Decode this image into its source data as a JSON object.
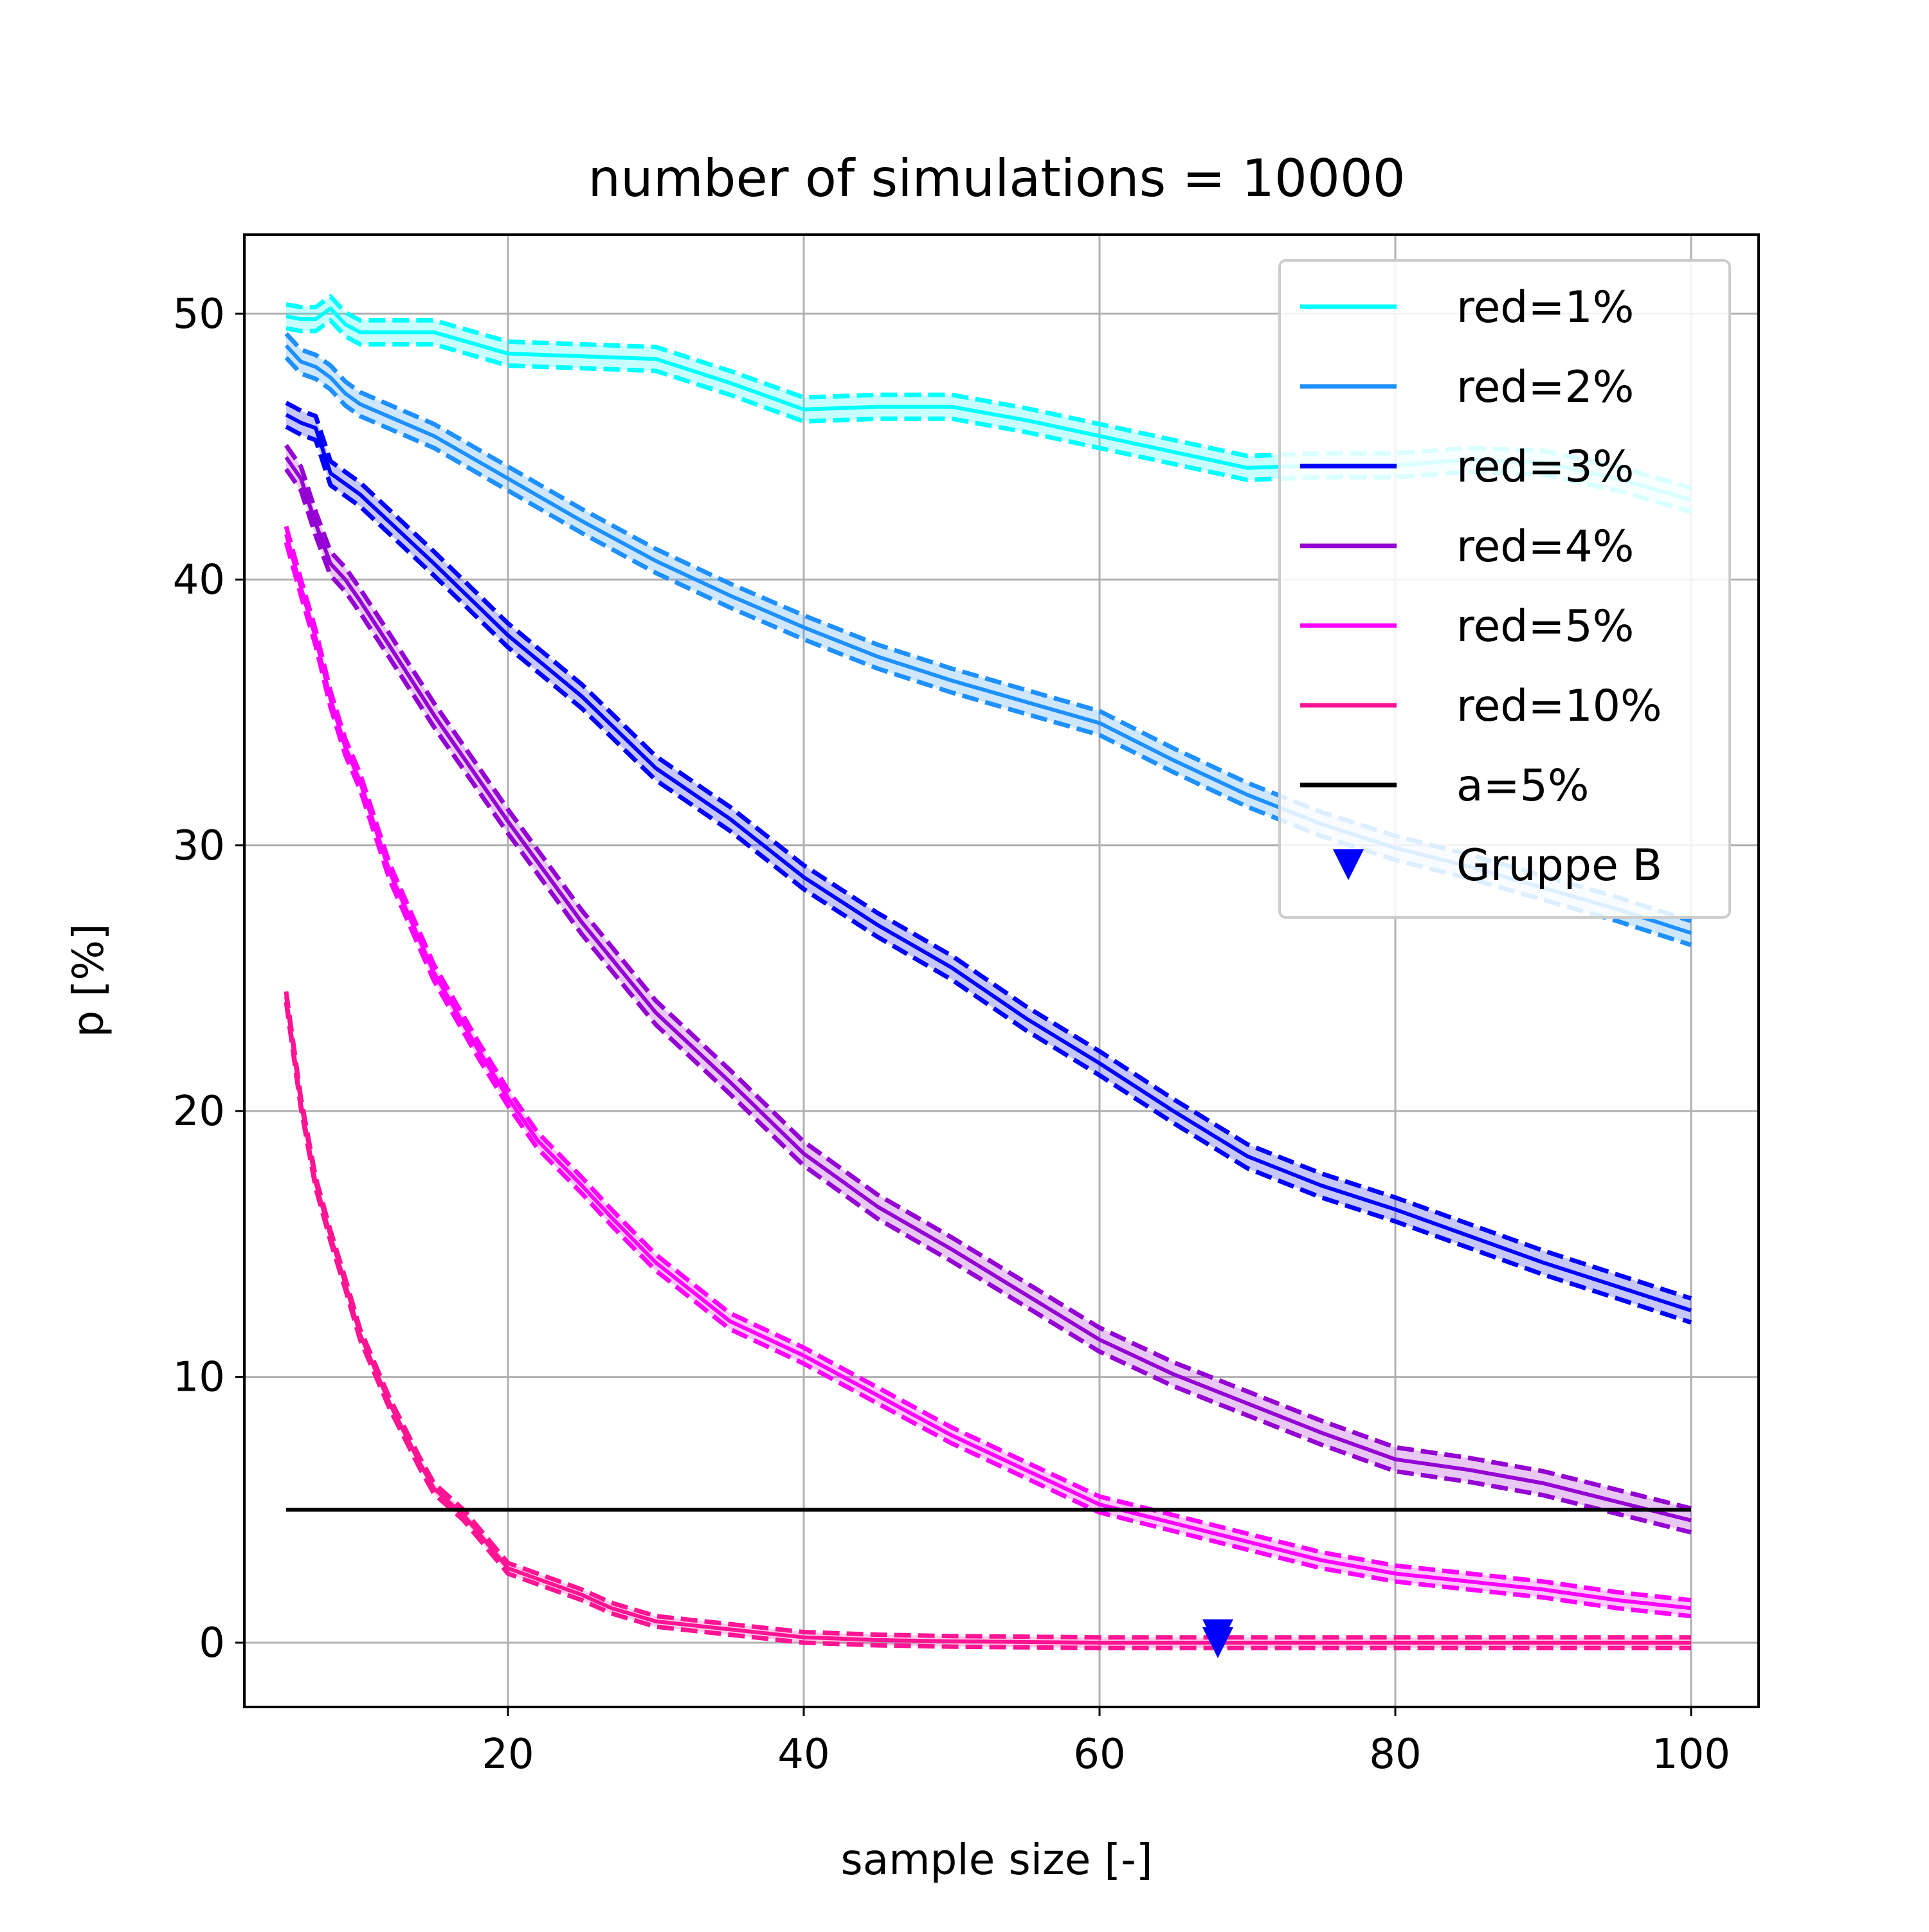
{
  "chart_data": {
    "type": "line",
    "title": "number of simulations = 10000",
    "xlabel": "sample size [-]",
    "ylabel": "p [%]",
    "xlim": [
      1,
      105
    ],
    "ylim": [
      -2.5,
      53
    ],
    "xticks": [
      20,
      40,
      60,
      80,
      100
    ],
    "yticks": [
      0,
      10,
      20,
      30,
      40,
      50
    ],
    "grid": true,
    "legend_position": "upper right",
    "series": [
      {
        "name": "red=1%",
        "color": "#00ffff",
        "x": [
          5,
          6,
          7,
          8,
          9,
          10,
          12,
          15,
          20,
          25,
          30,
          35,
          40,
          45,
          50,
          55,
          60,
          65,
          70,
          75,
          80,
          85,
          90,
          95,
          100
        ],
        "y": [
          49.9,
          49.8,
          49.8,
          50.2,
          49.6,
          49.3,
          49.3,
          49.3,
          48.5,
          48.4,
          48.3,
          47.4,
          46.4,
          46.5,
          46.5,
          46.0,
          45.4,
          44.8,
          44.2,
          44.3,
          44.3,
          44.5,
          44.4,
          43.8,
          43.0
        ],
        "band": 0.45
      },
      {
        "name": "red=2%",
        "color": "#1e90ff",
        "x": [
          5,
          6,
          7,
          8,
          9,
          10,
          15,
          20,
          25,
          30,
          35,
          40,
          45,
          50,
          55,
          60,
          65,
          70,
          75,
          80,
          85,
          90,
          95,
          100
        ],
        "y": [
          48.8,
          48.2,
          48.0,
          47.6,
          47.0,
          46.6,
          45.4,
          43.8,
          42.2,
          40.7,
          39.4,
          38.2,
          37.1,
          36.2,
          35.4,
          34.6,
          33.2,
          31.9,
          30.8,
          29.9,
          29.2,
          28.4,
          27.6,
          26.7
        ],
        "band": 0.45
      },
      {
        "name": "red=3%",
        "color": "#0000ff",
        "x": [
          5,
          6,
          7,
          8,
          9,
          10,
          15,
          20,
          25,
          30,
          35,
          40,
          45,
          50,
          55,
          60,
          65,
          70,
          75,
          80,
          85,
          90,
          95,
          100
        ],
        "y": [
          46.2,
          45.9,
          45.7,
          44.0,
          43.6,
          43.2,
          40.6,
          37.9,
          35.6,
          32.9,
          31.0,
          28.8,
          27.0,
          25.4,
          23.5,
          21.8,
          20.0,
          18.3,
          17.2,
          16.3,
          15.3,
          14.3,
          13.4,
          12.5
        ],
        "band": 0.45
      },
      {
        "name": "red=4%",
        "color": "#9400d3",
        "x": [
          5,
          6,
          7,
          8,
          9,
          10,
          12,
          15,
          20,
          25,
          30,
          35,
          40,
          45,
          50,
          55,
          60,
          65,
          70,
          75,
          80,
          85,
          90,
          95,
          100
        ],
        "y": [
          44.6,
          43.8,
          42.1,
          40.6,
          40.0,
          39.2,
          37.5,
          34.9,
          30.9,
          27.1,
          23.7,
          21.1,
          18.4,
          16.4,
          14.8,
          13.1,
          11.4,
          10.1,
          9.0,
          7.9,
          6.9,
          6.5,
          6.0,
          5.3,
          4.6
        ],
        "band": 0.45
      },
      {
        "name": "red=5%",
        "color": "#ff00ff",
        "x": [
          5,
          6,
          7,
          8,
          9,
          10,
          12,
          15,
          18,
          20,
          22,
          25,
          27,
          30,
          35,
          40,
          45,
          50,
          55,
          60,
          65,
          70,
          75,
          80,
          85,
          90,
          95,
          100
        ],
        "y": [
          41.7,
          39.7,
          37.8,
          35.5,
          33.7,
          32.4,
          29.0,
          25.2,
          22.3,
          20.5,
          18.9,
          17.2,
          16.0,
          14.3,
          12.1,
          10.8,
          9.3,
          7.8,
          6.5,
          5.2,
          4.5,
          3.8,
          3.1,
          2.6,
          2.3,
          2.0,
          1.6,
          1.3
        ],
        "band": 0.3
      },
      {
        "name": "red=10%",
        "color": "#ff1493",
        "x": [
          5,
          6,
          7,
          8,
          9,
          10,
          11,
          12,
          13,
          14,
          15,
          17,
          20,
          22,
          25,
          27,
          30,
          35,
          40,
          45,
          50,
          60,
          70,
          80,
          90,
          100
        ],
        "y": [
          24.3,
          20.3,
          17.3,
          15.3,
          13.5,
          11.6,
          10.3,
          9.0,
          7.9,
          6.8,
          5.8,
          4.8,
          2.8,
          2.4,
          1.8,
          1.3,
          0.8,
          0.5,
          0.2,
          0.1,
          0.05,
          0.0,
          0.0,
          0.0,
          0.0,
          0.0
        ],
        "band": 0.2
      }
    ],
    "reference_line": {
      "name": "a=5%",
      "color": "#000000",
      "x": [
        5,
        100
      ],
      "y": [
        5,
        5
      ]
    },
    "marker_series": {
      "name": "Gruppe B",
      "color": "#0000ff",
      "marker": "triangle-down",
      "x": [
        68,
        68
      ],
      "y": [
        0.3,
        0.0
      ]
    }
  }
}
